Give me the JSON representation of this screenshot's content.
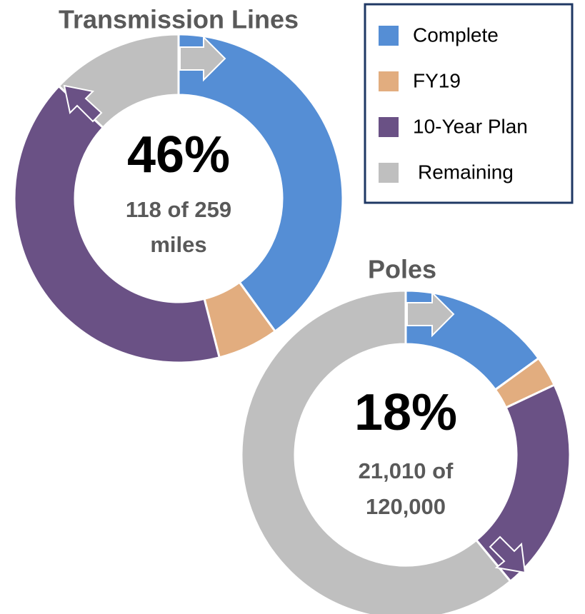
{
  "chart_data": [
    {
      "type": "pie",
      "title": "Transmission Lines",
      "center_label": "46%",
      "center_lines": [
        "118 of 259",
        "miles"
      ],
      "categories": [
        "Complete",
        "FY19",
        "10-Year Plan",
        "Remaining"
      ],
      "values": [
        40,
        6,
        41,
        13
      ],
      "colors": [
        "#558ed5",
        "#e2ad7f",
        "#6a5185",
        "#bfbfbf"
      ]
    },
    {
      "type": "pie",
      "title": "Poles",
      "center_label": "18%",
      "center_lines": [
        "21,010 of",
        "120,000"
      ],
      "categories": [
        "Complete",
        "FY19",
        "10-Year Plan",
        "Remaining"
      ],
      "values": [
        15,
        3,
        21,
        61
      ],
      "colors": [
        "#558ed5",
        "#e2ad7f",
        "#6a5185",
        "#bfbfbf"
      ]
    }
  ],
  "cut_text": "s"
}
